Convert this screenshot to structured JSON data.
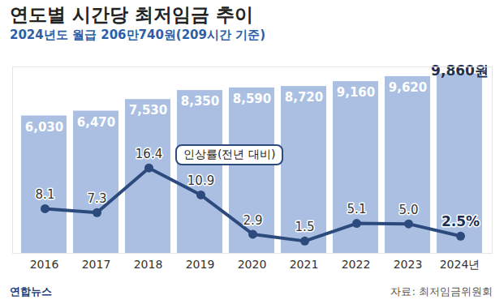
{
  "chart_data": {
    "type": "bar",
    "title": "연도별 시간당 최저임금 추이",
    "subtitle": "2024년도 월급 206만740원(209시간 기준)",
    "source": "자료: 최저임금위원회",
    "credit": "연합뉴스",
    "categories": [
      "2016",
      "2017",
      "2018",
      "2019",
      "2020",
      "2021",
      "2022",
      "2023",
      "2024년"
    ],
    "series": [
      {
        "type": "bar",
        "color": "#aabfe2",
        "values": [
          6030,
          6470,
          7530,
          8350,
          8590,
          8720,
          9160,
          9620,
          9860
        ],
        "value_labels": [
          "6,030",
          "6,470",
          "7,530",
          "8,350",
          "8,590",
          "8,720",
          "9,160",
          "9,620",
          "9,860원"
        ]
      },
      {
        "name": "인상률(전년 대비)",
        "type": "line",
        "axis": "y2",
        "color": "#2c4a7c",
        "marker": "circle",
        "values": [
          8.1,
          7.3,
          16.4,
          10.9,
          2.9,
          1.5,
          5.1,
          5.0,
          2.5
        ],
        "value_labels": [
          "8.1",
          "7.3",
          "16.4",
          "10.9",
          "2.9",
          "1.5",
          "5.1",
          "5.0",
          "2.5%"
        ]
      }
    ],
    "ylim": [
      -6500,
      10500
    ],
    "yticks": [],
    "y2lim": [
      -1,
      37
    ],
    "y2ticks": [],
    "grid": false,
    "data_labels": true,
    "tick_labels": "x"
  }
}
